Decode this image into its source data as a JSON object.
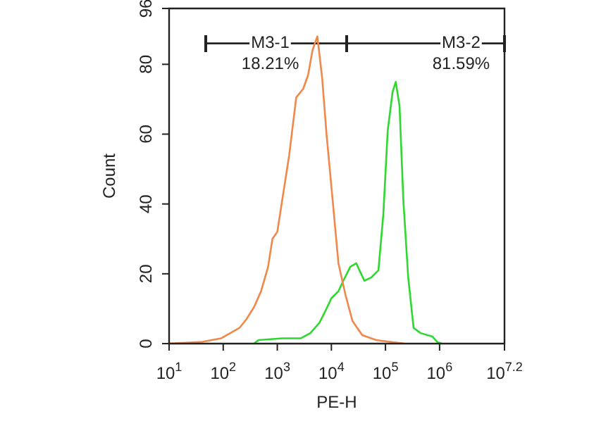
{
  "chart_data": {
    "type": "line",
    "xlabel": "PE-H",
    "ylabel": "Count",
    "log": "x",
    "xlim": [
      10,
      15850000
    ],
    "xticks": [
      {
        "value": 10,
        "label": "10$^{1}$"
      },
      {
        "value": 100,
        "label": "10$^{2}$"
      },
      {
        "value": 1000,
        "label": "10$^{3}$"
      },
      {
        "value": 10000,
        "label": "10$^{4}$"
      },
      {
        "value": 100000,
        "label": "10$^{5}$"
      },
      {
        "value": 1000000,
        "label": "10$^{6}$"
      },
      {
        "value": 15850000,
        "label": "10$^{7.2}$"
      }
    ],
    "ylim": [
      0,
      96
    ],
    "yticks": [
      0,
      20,
      40,
      60,
      80,
      96
    ],
    "grid": false,
    "legend": false,
    "marker": "none",
    "line_style": "solid",
    "series": [
      {
        "color": "#f0884a",
        "x": [
          10,
          41,
          91,
          200,
          269,
          372,
          501,
          676,
          813,
          1000,
          1230,
          1660,
          2240,
          3020,
          3720,
          4470,
          5500,
          6760,
          8130,
          10000,
          13500,
          18200,
          24500,
          37200,
          67600,
          224000
        ],
        "values": [
          0,
          0.5,
          1.5,
          4.5,
          7,
          10.5,
          15,
          22,
          30,
          32,
          41,
          54,
          70.5,
          73,
          77,
          84,
          88,
          76,
          60,
          45,
          23,
          14,
          6.5,
          2.4,
          1,
          0
        ]
      },
      {
        "color": "#2ed82e",
        "x": [
          372,
          447,
          1230,
          2690,
          4070,
          6030,
          8130,
          10000,
          13500,
          16600,
          22400,
          28800,
          40700,
          55000,
          74100,
          91200,
          110000,
          135000,
          155000,
          182000,
          214000,
          263000,
          331000,
          447000,
          741000,
          912000,
          1100000
        ],
        "values": [
          0,
          1,
          1.5,
          1.5,
          3,
          6,
          10,
          13,
          15,
          18,
          22,
          23,
          18,
          19,
          21,
          37,
          61,
          72,
          75,
          68,
          41,
          19,
          4.5,
          3,
          2,
          0.4,
          0
        ]
      },
      {
        "color": "#222222",
        "x": [
          48,
          19000,
          15850000
        ],
        "values": [
          86,
          86,
          86
        ]
      }
    ],
    "annotations": [
      {
        "text": "M3-1",
        "x": 740,
        "y": 86
      },
      "18.21%",
      {
        "text": "M3-2",
        "x": 2500000,
        "y": 86
      },
      "81.59%"
    ]
  }
}
